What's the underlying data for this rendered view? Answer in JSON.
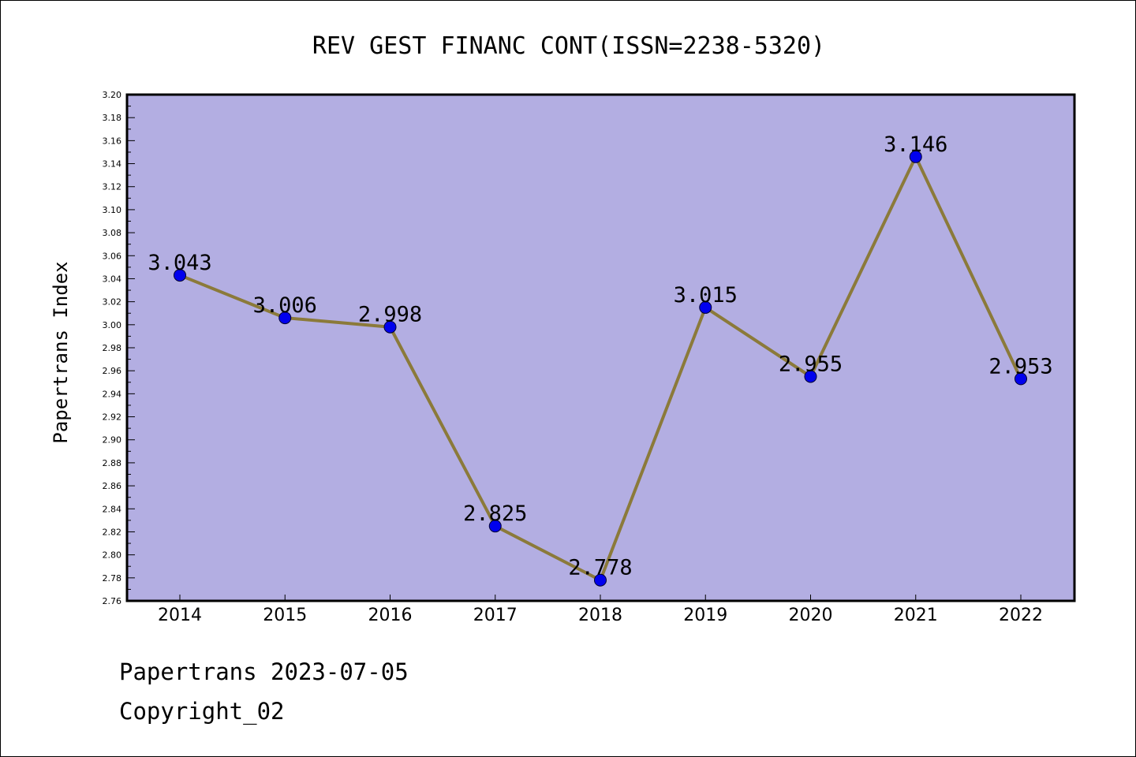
{
  "colors": {
    "plot_background": "#b3aee2",
    "line": "#8b7a3a",
    "marker": "#0000ee",
    "axis": "#000000"
  },
  "footer": {
    "line1": "Papertrans 2023-07-05",
    "line2": "Copyright_02"
  },
  "chart_data": {
    "type": "line",
    "title": "REV GEST FINANC CONT(ISSN=2238-5320)",
    "xlabel": "",
    "ylabel": "Papertrans Index",
    "categories": [
      "2014",
      "2015",
      "2016",
      "2017",
      "2018",
      "2019",
      "2020",
      "2021",
      "2022"
    ],
    "series": [
      {
        "values": [
          3.043,
          3.006,
          2.998,
          2.825,
          2.778,
          3.015,
          2.955,
          3.146,
          2.953
        ],
        "labels": [
          "3.043",
          "3.006",
          "2.998",
          "2.825",
          "2.778",
          "3.015",
          "2.955",
          "3.146",
          "2.953"
        ]
      }
    ],
    "ylim": [
      2.76,
      3.2
    ],
    "yticks": [
      "2.76",
      "2.78",
      "2.80",
      "2.82",
      "2.84",
      "2.86",
      "2.88",
      "2.90",
      "2.92",
      "2.94",
      "2.96",
      "2.98",
      "3.00",
      "3.02",
      "3.04",
      "3.06",
      "3.08",
      "3.10",
      "3.12",
      "3.14",
      "3.16",
      "3.18",
      "3.20"
    ],
    "grid": false,
    "legend": "none"
  }
}
